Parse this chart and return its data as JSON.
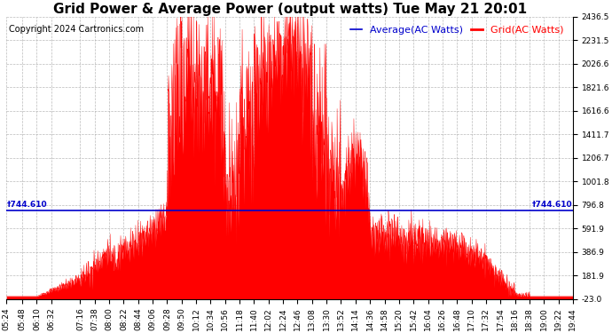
{
  "title": "Grid Power & Average Power (output watts) Tue May 21 20:01",
  "copyright": "Copyright 2024 Cartronics.com",
  "legend_average": "Average(AC Watts)",
  "legend_grid": "Grid(AC Watts)",
  "average_color": "#0000cc",
  "grid_color": "#ff0000",
  "fill_color": "#ff0000",
  "background_color": "#ffffff",
  "plot_bg_color": "#ffffff",
  "ymin": -23.0,
  "ymax": 2436.5,
  "yticks": [
    -23.0,
    181.9,
    386.9,
    591.9,
    796.8,
    1001.8,
    1206.7,
    1411.7,
    1616.6,
    1821.6,
    2026.6,
    2231.5,
    2436.5
  ],
  "avg_line_value": 744.61,
  "avg_line_label": "744.610",
  "grid_color_lines": "#aaaaaa",
  "title_fontsize": 11,
  "tick_fontsize": 6.5,
  "copyright_fontsize": 7,
  "legend_fontsize": 8,
  "xtick_labels": [
    "05:24",
    "05:48",
    "06:10",
    "06:32",
    "07:16",
    "07:38",
    "08:00",
    "08:22",
    "08:44",
    "09:06",
    "09:28",
    "09:50",
    "10:12",
    "10:34",
    "10:56",
    "11:18",
    "11:40",
    "12:02",
    "12:24",
    "12:46",
    "13:08",
    "13:30",
    "13:52",
    "14:14",
    "14:36",
    "14:58",
    "15:20",
    "15:42",
    "16:04",
    "16:26",
    "16:48",
    "17:10",
    "17:32",
    "17:54",
    "18:16",
    "18:38",
    "19:00",
    "19:22",
    "19:44"
  ]
}
